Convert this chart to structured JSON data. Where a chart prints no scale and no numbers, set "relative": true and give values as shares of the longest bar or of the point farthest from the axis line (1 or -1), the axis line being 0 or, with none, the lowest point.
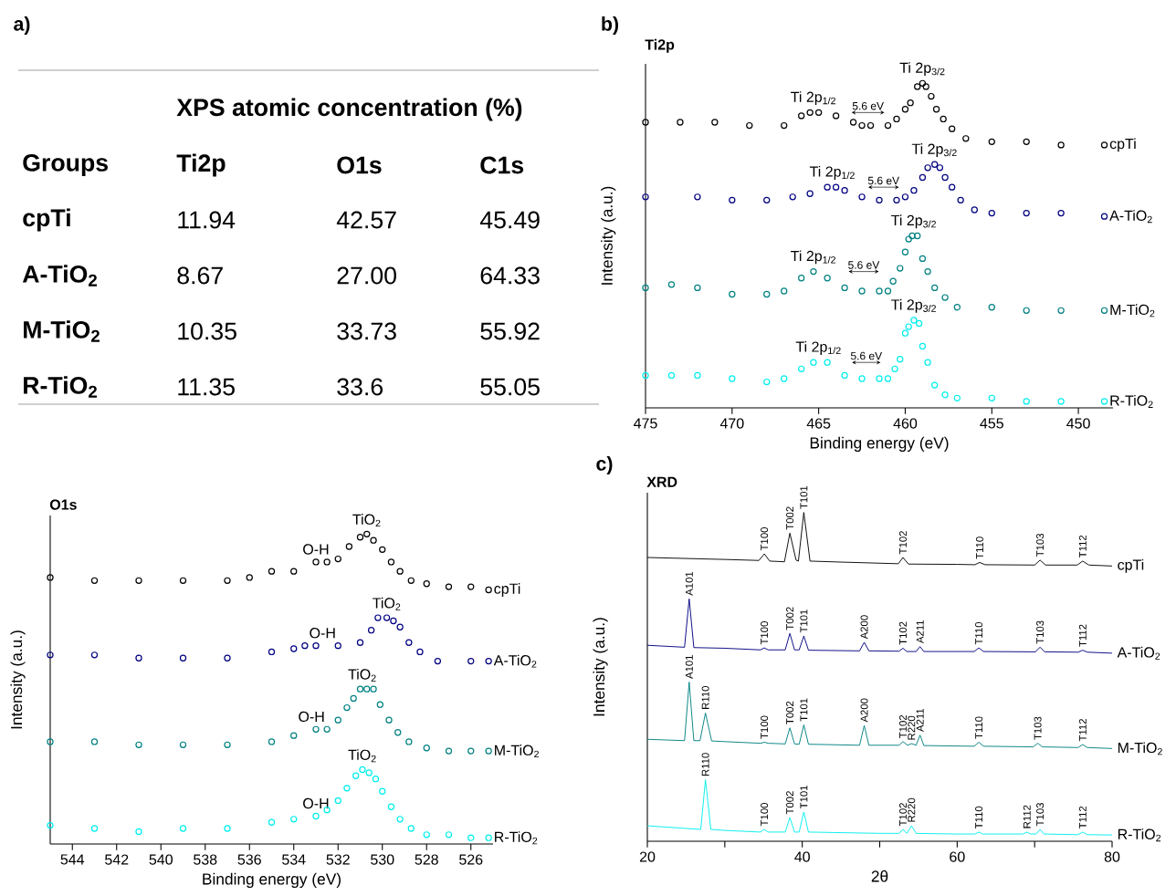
{
  "chart_data": [
    {
      "type": "other",
      "title": "XPS atomic concentration (%)",
      "annotations": [
        "a)"
      ],
      "categories": [
        "Groups",
        "Ti2p",
        "O1s",
        "C1s"
      ],
      "y_categories": [
        "cpTi",
        "A-TiO$_{2}$",
        "M-TiO$_{2}$",
        "R-TiO$_{2}$"
      ],
      "cell_labels": [
        [
          "11.94",
          "42.57",
          "45.49"
        ],
        [
          "8.67",
          "27.00",
          "64.33"
        ],
        [
          "10.35",
          "33.73",
          "55.92"
        ],
        [
          "11.35",
          "33.6",
          "55.05"
        ]
      ]
    },
    {
      "type": "scatter",
      "title": "Ti2p",
      "xlabel": "Binding energy (eV)",
      "ylabel": "Intensity (a.u.)",
      "relative": true,
      "marker": "circle",
      "xlim": [
        475,
        448
      ],
      "xticks": [
        475,
        470,
        465,
        460,
        455,
        450
      ],
      "series": [
        {
          "name": "cpTi",
          "color": "#000000",
          "x": [
            475,
            473,
            471,
            469,
            467,
            466,
            465.5,
            465,
            464,
            463,
            462.5,
            462,
            461,
            460.5,
            460,
            459.7,
            459.3,
            459,
            458.8,
            458.5,
            458.2,
            457.8,
            457.3,
            456.5,
            455,
            453,
            451,
            448.5
          ],
          "values": [
            0.88,
            0.88,
            0.88,
            0.87,
            0.87,
            0.9,
            0.91,
            0.91,
            0.9,
            0.88,
            0.87,
            0.87,
            0.87,
            0.89,
            0.92,
            0.94,
            0.99,
            1.0,
            0.99,
            0.96,
            0.92,
            0.89,
            0.86,
            0.83,
            0.82,
            0.82,
            0.81,
            0.81
          ]
        },
        {
          "name": "A-TiO$_{2}$",
          "color": "#000080",
          "x": [
            475,
            472,
            470,
            468,
            466.5,
            465.5,
            464.5,
            464,
            463.5,
            462.5,
            461.5,
            460.5,
            460,
            459.5,
            459,
            458.7,
            458.3,
            458,
            457.7,
            457.3,
            456.8,
            456,
            455,
            453,
            451,
            448.5
          ],
          "values": [
            0.65,
            0.65,
            0.64,
            0.64,
            0.65,
            0.66,
            0.68,
            0.68,
            0.67,
            0.65,
            0.64,
            0.64,
            0.65,
            0.67,
            0.71,
            0.74,
            0.75,
            0.74,
            0.71,
            0.68,
            0.64,
            0.61,
            0.6,
            0.6,
            0.6,
            0.59
          ]
        },
        {
          "name": "M-TiO$_{2}$",
          "color": "#008080",
          "x": [
            475,
            473.5,
            472,
            470,
            468,
            467,
            466,
            465.3,
            464.5,
            463.5,
            462.5,
            461.5,
            461,
            460.7,
            460.3,
            460,
            459.8,
            459.6,
            459.3,
            459,
            458.7,
            458.3,
            457.7,
            457,
            455,
            453,
            451,
            448.5
          ],
          "values": [
            0.37,
            0.38,
            0.37,
            0.35,
            0.35,
            0.36,
            0.4,
            0.42,
            0.4,
            0.37,
            0.36,
            0.36,
            0.36,
            0.39,
            0.43,
            0.48,
            0.52,
            0.53,
            0.53,
            0.46,
            0.42,
            0.37,
            0.34,
            0.31,
            0.31,
            0.3,
            0.3,
            0.3
          ]
        },
        {
          "name": "R-TiO$_{2}$",
          "color": "#00eeee",
          "x": [
            475,
            473.5,
            472,
            470,
            468,
            467,
            466,
            465.3,
            464.5,
            463.5,
            462.5,
            461.5,
            461,
            460.6,
            460.3,
            460,
            459.8,
            459.5,
            459.2,
            459,
            458.7,
            458.3,
            457.7,
            457,
            455,
            453,
            451,
            448.5
          ],
          "values": [
            0.1,
            0.1,
            0.1,
            0.09,
            0.08,
            0.09,
            0.12,
            0.14,
            0.14,
            0.1,
            0.09,
            0.09,
            0.09,
            0.12,
            0.15,
            0.23,
            0.25,
            0.27,
            0.26,
            0.19,
            0.14,
            0.07,
            0.04,
            0.03,
            0.03,
            0.02,
            0.02,
            0.02
          ]
        }
      ],
      "annotations": [
        "b)",
        {
          "text": "Ti 2p$_{1/2}$",
          "x": 465.3,
          "y": 0.91
        },
        {
          "text": "Ti 2p$_{3/2}$",
          "x": 459,
          "y": 1.0
        },
        "5.6 eV",
        {
          "text": "Ti 2p$_{1/2}$",
          "x": 464.2,
          "y": 0.68
        },
        {
          "text": "Ti 2p$_{3/2}$",
          "x": 458.3,
          "y": 0.75
        },
        "5.6 eV",
        {
          "text": "Ti 2p$_{1/2}$",
          "x": 465.3,
          "y": 0.42
        },
        {
          "text": "Ti 2p$_{3/2}$",
          "x": 459.5,
          "y": 0.53
        },
        "5.6 eV",
        {
          "text": "Ti 2p$_{1/2}$",
          "x": 465.0,
          "y": 0.14
        },
        {
          "text": "Ti 2p$_{3/2}$",
          "x": 459.5,
          "y": 0.27
        },
        "5.6 eV"
      ]
    },
    {
      "type": "scatter",
      "title": "O1s",
      "xlabel": "Binding energy (eV)",
      "ylabel": "Intensity (a.u.)",
      "relative": true,
      "marker": "circle",
      "xlim": [
        545,
        525
      ],
      "xticks": [
        544,
        542,
        540,
        538,
        536,
        534,
        532,
        530,
        528,
        526
      ],
      "series": [
        {
          "name": "cpTi",
          "color": "#000000",
          "x": [
            545,
            543,
            541,
            539,
            537,
            536,
            535,
            534,
            533,
            532.5,
            532,
            531.5,
            531,
            530.7,
            530.4,
            530,
            529.6,
            529.2,
            528.7,
            528,
            527,
            526,
            525.2
          ],
          "values": [
            0.86,
            0.85,
            0.85,
            0.85,
            0.85,
            0.86,
            0.88,
            0.88,
            0.91,
            0.91,
            0.92,
            0.96,
            0.99,
            1.0,
            0.98,
            0.95,
            0.91,
            0.88,
            0.85,
            0.84,
            0.83,
            0.83,
            0.82
          ]
        },
        {
          "name": "A-TiO$_{2}$",
          "color": "#000080",
          "x": [
            545,
            543,
            541,
            539,
            537,
            535,
            534,
            533.5,
            533,
            532,
            531,
            530.5,
            530.2,
            529.8,
            529.5,
            529.2,
            528.8,
            528.3,
            527.5,
            526,
            525.2
          ],
          "values": [
            0.61,
            0.61,
            0.6,
            0.6,
            0.6,
            0.62,
            0.63,
            0.64,
            0.64,
            0.64,
            0.65,
            0.69,
            0.73,
            0.73,
            0.72,
            0.7,
            0.65,
            0.62,
            0.59,
            0.59,
            0.59
          ]
        },
        {
          "name": "M-TiO$_{2}$",
          "color": "#008080",
          "x": [
            545,
            543,
            541,
            539,
            537,
            535,
            534,
            533,
            532.5,
            532,
            531.6,
            531.3,
            531,
            530.7,
            530.4,
            530.1,
            529.7,
            529.3,
            528.8,
            528,
            527,
            526,
            525.2
          ],
          "values": [
            0.33,
            0.33,
            0.32,
            0.32,
            0.32,
            0.33,
            0.35,
            0.37,
            0.37,
            0.4,
            0.44,
            0.47,
            0.5,
            0.5,
            0.5,
            0.45,
            0.4,
            0.36,
            0.33,
            0.31,
            0.3,
            0.3,
            0.3
          ]
        },
        {
          "name": "R-TiO$_{2}$",
          "color": "#00eeee",
          "x": [
            545,
            543,
            541,
            539,
            537,
            535,
            534,
            533,
            532.5,
            532,
            531.6,
            531.2,
            530.9,
            530.6,
            530.3,
            530,
            529.6,
            529.2,
            528.7,
            528,
            527,
            526,
            525.2
          ],
          "values": [
            0.06,
            0.05,
            0.04,
            0.05,
            0.05,
            0.07,
            0.08,
            0.09,
            0.11,
            0.14,
            0.18,
            0.22,
            0.24,
            0.23,
            0.21,
            0.17,
            0.12,
            0.08,
            0.05,
            0.03,
            0.03,
            0.02,
            0.02
          ]
        }
      ],
      "annotations": [
        {
          "text": "TiO$_{2}$",
          "x": 530.7,
          "y": 1.0
        },
        {
          "text": "O-H",
          "x": 533,
          "y": 0.91
        },
        {
          "text": "TiO$_{2}$",
          "x": 529.8,
          "y": 0.73
        },
        {
          "text": "O-H",
          "x": 532.7,
          "y": 0.64
        },
        {
          "text": "TiO$_{2}$",
          "x": 530.9,
          "y": 0.5
        },
        {
          "text": "O-H",
          "x": 533.2,
          "y": 0.37
        },
        {
          "text": "TiO$_{2}$",
          "x": 530.9,
          "y": 0.24
        },
        {
          "text": "O-H",
          "x": 533,
          "y": 0.09
        }
      ]
    },
    {
      "type": "line",
      "title": "XRD",
      "xlabel": "2θ",
      "ylabel": "Intensity (a.u.)",
      "relative": true,
      "xlim": [
        20,
        80
      ],
      "xticks": [
        20,
        {
          "value": 30,
          "label": null
        },
        40,
        {
          "value": 50,
          "label": null
        },
        60,
        {
          "value": 70,
          "label": null
        },
        80
      ],
      "series": [
        {
          "name": "cpTi",
          "color": "#000000",
          "x": [
            20,
            30,
            34.4,
            35.1,
            35.8,
            37.7,
            38.4,
            39.2,
            39.5,
            40.2,
            41.0,
            45,
            52.4,
            53.0,
            53.7,
            60,
            62.3,
            62.9,
            63.6,
            70,
            70.7,
            71.4,
            75.5,
            76.2,
            77,
            80
          ],
          "values": [
            0.863,
            0.857,
            0.854,
            0.874,
            0.852,
            0.85,
            0.937,
            0.855,
            0.852,
            1.0,
            0.852,
            0.849,
            0.844,
            0.863,
            0.843,
            0.842,
            0.841,
            0.848,
            0.841,
            0.84,
            0.855,
            0.84,
            0.84,
            0.852,
            0.84,
            0.837
          ]
        },
        {
          "name": "A-TiO$_{2}$",
          "color": "#000080",
          "x": [
            20,
            24.8,
            25.4,
            26.0,
            30,
            34.6,
            35.1,
            35.6,
            37.8,
            38.4,
            39.0,
            39.6,
            40.2,
            40.8,
            47.4,
            48.0,
            48.6,
            52.5,
            53.0,
            53.5,
            54.7,
            55.2,
            55.7,
            62.2,
            62.8,
            63.4,
            70.1,
            70.7,
            71.3,
            75.6,
            76.2,
            76.8,
            80
          ],
          "values": [
            0.596,
            0.59,
            0.737,
            0.589,
            0.587,
            0.582,
            0.588,
            0.582,
            0.582,
            0.632,
            0.582,
            0.582,
            0.624,
            0.581,
            0.579,
            0.605,
            0.579,
            0.578,
            0.587,
            0.577,
            0.577,
            0.592,
            0.577,
            0.577,
            0.588,
            0.577,
            0.576,
            0.59,
            0.576,
            0.575,
            0.581,
            0.575,
            0.572
          ]
        },
        {
          "name": "M-TiO$_{2}$",
          "color": "#008080",
          "x": [
            20,
            24.8,
            25.4,
            26.0,
            26.8,
            27.5,
            28.3,
            30,
            34.6,
            35.1,
            35.6,
            37.8,
            38.4,
            39.0,
            39.6,
            40.2,
            40.8,
            47.4,
            48.0,
            48.6,
            52.5,
            53.0,
            53.6,
            54.1,
            54.7,
            55.2,
            55.7,
            62.2,
            62.8,
            63.4,
            69.8,
            70.4,
            71.0,
            75.6,
            76.2,
            76.8,
            80
          ],
          "values": [
            0.31,
            0.306,
            0.484,
            0.306,
            0.306,
            0.39,
            0.305,
            0.303,
            0.298,
            0.301,
            0.298,
            0.296,
            0.345,
            0.296,
            0.295,
            0.354,
            0.295,
            0.292,
            0.352,
            0.292,
            0.292,
            0.303,
            0.292,
            0.297,
            0.292,
            0.323,
            0.291,
            0.289,
            0.301,
            0.289,
            0.287,
            0.298,
            0.287,
            0.285,
            0.294,
            0.285,
            0.282
          ]
        },
        {
          "name": "R-TiO$_{2}$",
          "color": "#00eeee",
          "x": [
            20,
            25,
            26.9,
            27.5,
            28.2,
            30,
            34.6,
            35.1,
            35.6,
            37.8,
            38.4,
            39.0,
            39.6,
            40.2,
            40.8,
            50,
            52.5,
            53.0,
            53.5,
            54.1,
            54.7,
            60,
            62.3,
            62.8,
            63.3,
            68.5,
            69.0,
            69.5,
            70.2,
            70.7,
            71.2,
            75.6,
            76.2,
            76.8,
            80
          ],
          "values": [
            0.047,
            0.039,
            0.036,
            0.187,
            0.036,
            0.033,
            0.028,
            0.036,
            0.028,
            0.028,
            0.072,
            0.028,
            0.028,
            0.089,
            0.028,
            0.024,
            0.024,
            0.036,
            0.024,
            0.047,
            0.024,
            0.022,
            0.022,
            0.028,
            0.022,
            0.022,
            0.028,
            0.022,
            0.022,
            0.036,
            0.022,
            0.02,
            0.028,
            0.02,
            0.019
          ]
        }
      ],
      "annotations": [
        "c)",
        {
          "text": "T100",
          "x": 35.1,
          "y": 0.874
        },
        {
          "text": "T002",
          "x": 38.4,
          "y": 0.937
        },
        {
          "text": "T101",
          "x": 40.2,
          "y": 1.0
        },
        {
          "text": "T102",
          "x": 53.0,
          "y": 0.863
        },
        {
          "text": "T110",
          "x": 62.9,
          "y": 0.848
        },
        {
          "text": "T103",
          "x": 70.7,
          "y": 0.855
        },
        {
          "text": "T112",
          "x": 76.2,
          "y": 0.852
        },
        {
          "text": "A101",
          "x": 25.4,
          "y": 0.737
        },
        {
          "text": "T100",
          "x": 35.1,
          "y": 0.588
        },
        {
          "text": "T002",
          "x": 38.4,
          "y": 0.632
        },
        {
          "text": "T101",
          "x": 40.2,
          "y": 0.624
        },
        {
          "text": "A200",
          "x": 48.0,
          "y": 0.605
        },
        {
          "text": "T102",
          "x": 53.0,
          "y": 0.587
        },
        {
          "text": "A211",
          "x": 55.2,
          "y": 0.592
        },
        {
          "text": "T110",
          "x": 62.8,
          "y": 0.588
        },
        {
          "text": "T103",
          "x": 70.7,
          "y": 0.59
        },
        {
          "text": "T112",
          "x": 76.2,
          "y": 0.581
        },
        {
          "text": "A101",
          "x": 25.4,
          "y": 0.484
        },
        {
          "text": "R110",
          "x": 27.5,
          "y": 0.39
        },
        {
          "text": "T100",
          "x": 35.1,
          "y": 0.301
        },
        {
          "text": "T002",
          "x": 38.4,
          "y": 0.345
        },
        {
          "text": "T101",
          "x": 40.2,
          "y": 0.354
        },
        {
          "text": "A200",
          "x": 48.0,
          "y": 0.352
        },
        {
          "text": "T102",
          "x": 53.0,
          "y": 0.303
        },
        {
          "text": "R220",
          "x": 54.1,
          "y": 0.297
        },
        {
          "text": "A211",
          "x": 55.2,
          "y": 0.323
        },
        {
          "text": "T110",
          "x": 62.8,
          "y": 0.301
        },
        {
          "text": "T103",
          "x": 70.4,
          "y": 0.298
        },
        {
          "text": "T112",
          "x": 76.2,
          "y": 0.294
        },
        {
          "text": "R110",
          "x": 27.5,
          "y": 0.187
        },
        {
          "text": "T100",
          "x": 35.1,
          "y": 0.036
        },
        {
          "text": "T002",
          "x": 38.4,
          "y": 0.072
        },
        {
          "text": "T101",
          "x": 40.2,
          "y": 0.089
        },
        {
          "text": "T102",
          "x": 53.0,
          "y": 0.036
        },
        {
          "text": "R220",
          "x": 54.1,
          "y": 0.047
        },
        {
          "text": "T110",
          "x": 62.8,
          "y": 0.028
        },
        {
          "text": "R112",
          "x": 69.0,
          "y": 0.028
        },
        {
          "text": "T103",
          "x": 70.7,
          "y": 0.036
        },
        {
          "text": "T112",
          "x": 76.2,
          "y": 0.028
        }
      ]
    }
  ]
}
